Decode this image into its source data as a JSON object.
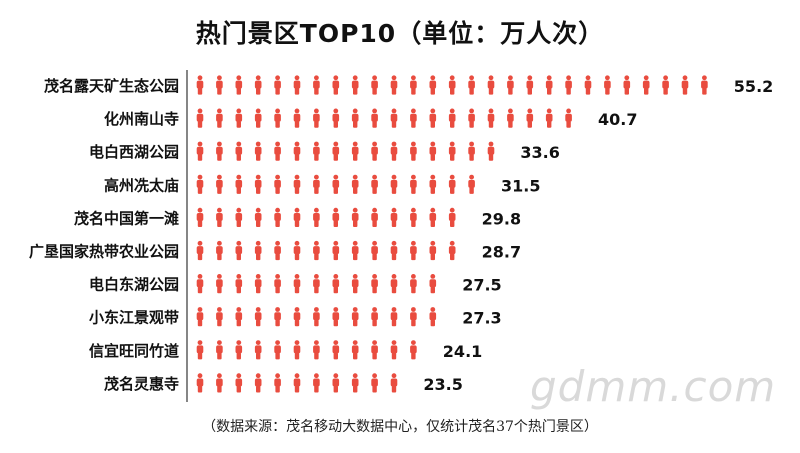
{
  "chart_data": {
    "type": "bar",
    "title": "热门景区TOP10（单位：万人次）",
    "categories": [
      "茂名露天矿生态公园",
      "化州南山寺",
      "电白西湖公园",
      "高州冼太庙",
      "茂名中国第一滩",
      "广垦国家热带农业公园",
      "电白东湖公园",
      "小东江景观带",
      "信宜旺同竹道",
      "茂名灵惠寺"
    ],
    "values": [
      55.2,
      40.7,
      33.6,
      31.5,
      29.8,
      28.7,
      27.5,
      27.3,
      24.1,
      23.5
    ],
    "value_labels": [
      "55.2",
      "40.7",
      "33.6",
      "31.5",
      "29.8",
      "28.7",
      "27.5",
      "27.3",
      "24.1",
      "23.5"
    ],
    "units_per_icon": 2,
    "orientation": "horizontal",
    "marker": "person-icon",
    "color": "#e94c3f",
    "xlim": [
      0,
      56
    ],
    "grid": false,
    "legend": "none"
  },
  "source_note": "（数据来源：茂名移动大数据中心，仅统计茂名37个热门景区）",
  "watermark": "gdmm.com"
}
